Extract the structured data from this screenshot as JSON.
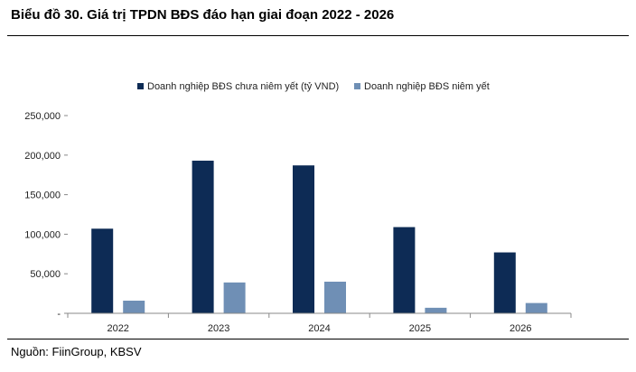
{
  "header": {
    "title": "Biểu đồ 30. Giá trị TPDN BĐS đáo hạn giai đoạn 2022 - 2026"
  },
  "footer": {
    "source": "Nguồn: FiinGroup, KBSV"
  },
  "chart_data": {
    "type": "bar",
    "title": "",
    "xlabel": "",
    "ylabel": "",
    "categories": [
      "2022",
      "2023",
      "2024",
      "2025",
      "2026"
    ],
    "series": [
      {
        "name": "Doanh nghiệp BĐS chưa niêm yết (tỷ VND)",
        "color": "#0d2b55",
        "values": [
          107000,
          193000,
          187000,
          109000,
          77000
        ]
      },
      {
        "name": "Doanh nghiệp BĐS niêm yết",
        "color": "#6f8fb5",
        "values": [
          16000,
          39000,
          40000,
          7000,
          13000
        ]
      }
    ],
    "ylim": [
      0,
      250000
    ],
    "yticks": [
      "-",
      "50,000",
      "100,000",
      "150,000",
      "200,000",
      "250,000"
    ],
    "ytick_values": [
      0,
      50000,
      100000,
      150000,
      200000,
      250000
    ],
    "grid": false,
    "legend_position": "top-center"
  }
}
